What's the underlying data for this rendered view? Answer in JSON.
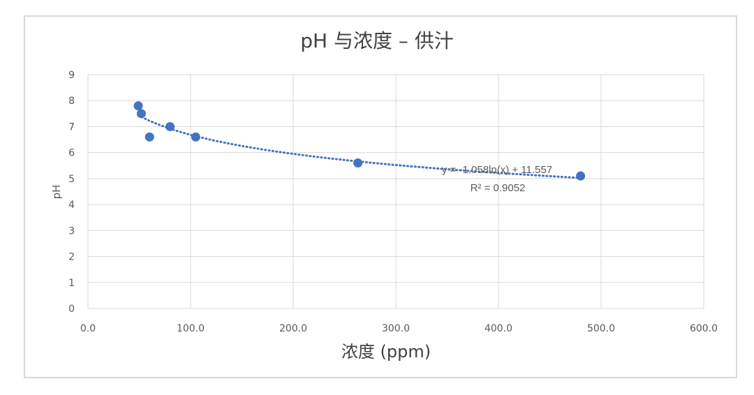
{
  "chart_data": {
    "type": "scatter",
    "title": "pH 与浓度 – 供汁",
    "xlabel": "浓度 (ppm)",
    "ylabel": "pH",
    "xlim": [
      0,
      600
    ],
    "ylim": [
      0,
      9
    ],
    "x_ticks": [
      "0.0",
      "100.0",
      "200.0",
      "300.0",
      "400.0",
      "500.0",
      "600.0"
    ],
    "y_ticks": [
      "0",
      "1",
      "2",
      "3",
      "4",
      "5",
      "6",
      "7",
      "8",
      "9"
    ],
    "grid": true,
    "marker_color": "#4472c4",
    "trendline_color": "#4472c4",
    "points": [
      {
        "x": 49,
        "y": 7.8
      },
      {
        "x": 52,
        "y": 7.5
      },
      {
        "x": 60,
        "y": 6.6
      },
      {
        "x": 80,
        "y": 7.0
      },
      {
        "x": 105,
        "y": 6.6
      },
      {
        "x": 263,
        "y": 5.6
      },
      {
        "x": 480,
        "y": 5.1
      }
    ],
    "trendline": {
      "type": "log",
      "a": -1.058,
      "b": 11.557,
      "x_range": [
        49,
        480
      ]
    },
    "annotations": {
      "equation": "y = -1.058ln(x) + 11.557",
      "r_squared": "R² = 0.9052"
    }
  }
}
